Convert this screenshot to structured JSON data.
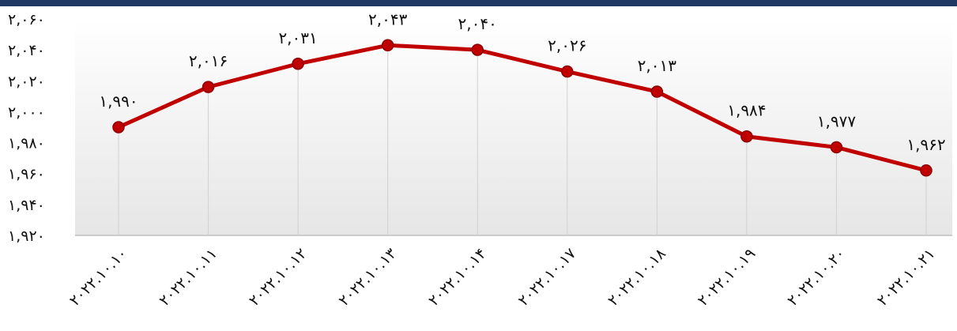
{
  "chart_data": {
    "type": "line",
    "categories": [
      "۲۰۲۲.۱۰.۱۰",
      "۲۰۲۲.۱۰.۱۱",
      "۲۰۲۲.۱۰.۱۲",
      "۲۰۲۲.۱۰.۱۳",
      "۲۰۲۲.۱۰.۱۴",
      "۲۰۲۲.۱۰.۱۷",
      "۲۰۲۲.۱۰.۱۸",
      "۲۰۲۲.۱۰.۱۹",
      "۲۰۲۲.۱۰.۲۰",
      "۲۰۲۲.۱۰.۲۱"
    ],
    "values": [
      1990,
      2016,
      2031,
      2043,
      2040,
      2026,
      2013,
      1984,
      1977,
      1962
    ],
    "value_labels": [
      "۱,۹۹۰",
      "۲,۰۱۶",
      "۲,۰۳۱",
      "۲,۰۴۳",
      "۲,۰۴۰",
      "۲,۰۲۶",
      "۲,۰۱۳",
      "۱,۹۸۴",
      "۱,۹۷۷",
      "۱,۹۶۲"
    ],
    "color": "#c00000",
    "ylim": [
      1920,
      2060
    ],
    "yticks": [
      {
        "value": 1920,
        "label": "۱,۹۲۰"
      },
      {
        "value": 1940,
        "label": "۱,۹۴۰"
      },
      {
        "value": 1960,
        "label": "۱,۹۶۰"
      },
      {
        "value": 1980,
        "label": "۱,۹۸۰"
      },
      {
        "value": 2000,
        "label": "۲,۰۰۰"
      },
      {
        "value": 2020,
        "label": "۲,۰۲۰"
      },
      {
        "value": 2040,
        "label": "۲,۰۴۰"
      },
      {
        "value": 2060,
        "label": "۲,۰۶۰"
      }
    ],
    "grid": true
  }
}
